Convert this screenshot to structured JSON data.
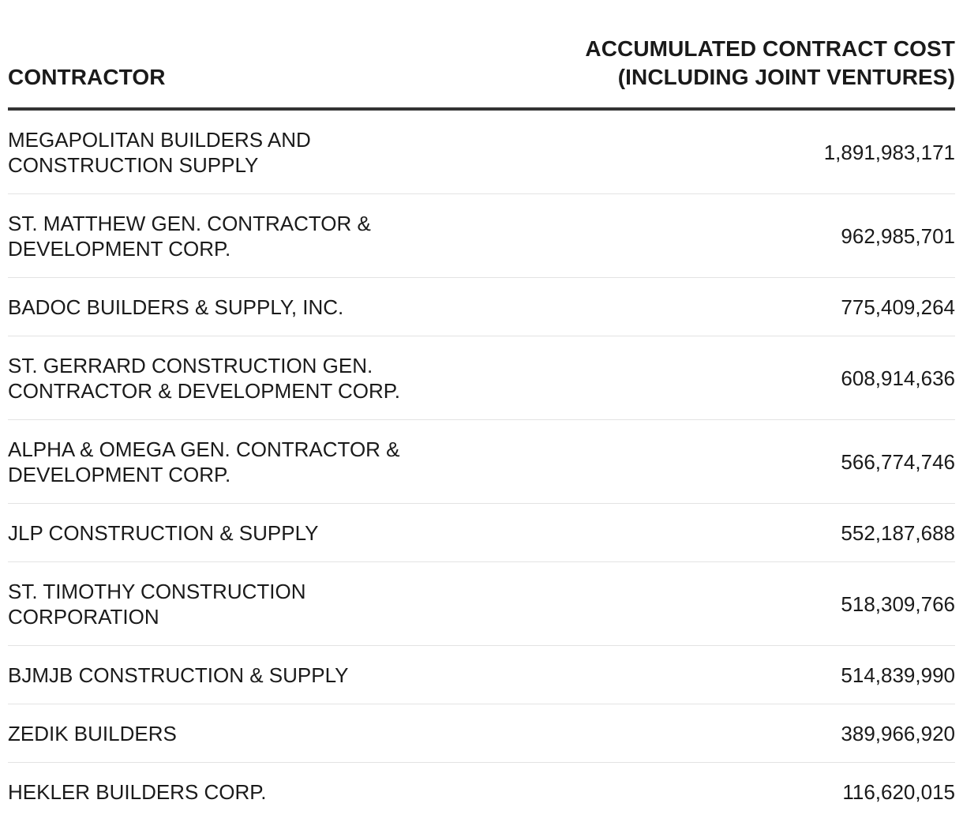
{
  "chart_data": {
    "type": "table",
    "columns": [
      "CONTRACTOR",
      "ACCUMULATED CONTRACT COST (INCLUDING JOINT VENTURES)"
    ],
    "header": {
      "contractor_label": "CONTRACTOR",
      "cost_label_line1": "ACCUMULATED CONTRACT COST",
      "cost_label_line2": "(INCLUDING JOINT VENTURES)"
    },
    "rows": [
      {
        "contractor_line1": "MEGAPOLITAN BUILDERS AND",
        "contractor_line2": "CONSTRUCTION SUPPLY",
        "cost": "1,891,983,171"
      },
      {
        "contractor_line1": "ST. MATTHEW GEN. CONTRACTOR &",
        "contractor_line2": "DEVELOPMENT CORP.",
        "cost": "962,985,701"
      },
      {
        "contractor_line1": "BADOC BUILDERS & SUPPLY, INC.",
        "contractor_line2": "",
        "cost": "775,409,264"
      },
      {
        "contractor_line1": "ST. GERRARD CONSTRUCTION GEN.",
        "contractor_line2": "CONTRACTOR & DEVELOPMENT CORP.",
        "cost": "608,914,636"
      },
      {
        "contractor_line1": "ALPHA & OMEGA GEN. CONTRACTOR &",
        "contractor_line2": "DEVELOPMENT CORP.",
        "cost": "566,774,746"
      },
      {
        "contractor_line1": "JLP CONSTRUCTION & SUPPLY",
        "contractor_line2": "",
        "cost": "552,187,688"
      },
      {
        "contractor_line1": "ST. TIMOTHY CONSTRUCTION",
        "contractor_line2": "CORPORATION",
        "cost": "518,309,766"
      },
      {
        "contractor_line1": "BJMJB CONSTRUCTION & SUPPLY",
        "contractor_line2": "",
        "cost": "514,839,990"
      },
      {
        "contractor_line1": "ZEDIK BUILDERS",
        "contractor_line2": "",
        "cost": "389,966,920"
      },
      {
        "contractor_line1": "HEKLER BUILDERS CORP.",
        "contractor_line2": "",
        "cost": "116,620,015"
      }
    ]
  }
}
